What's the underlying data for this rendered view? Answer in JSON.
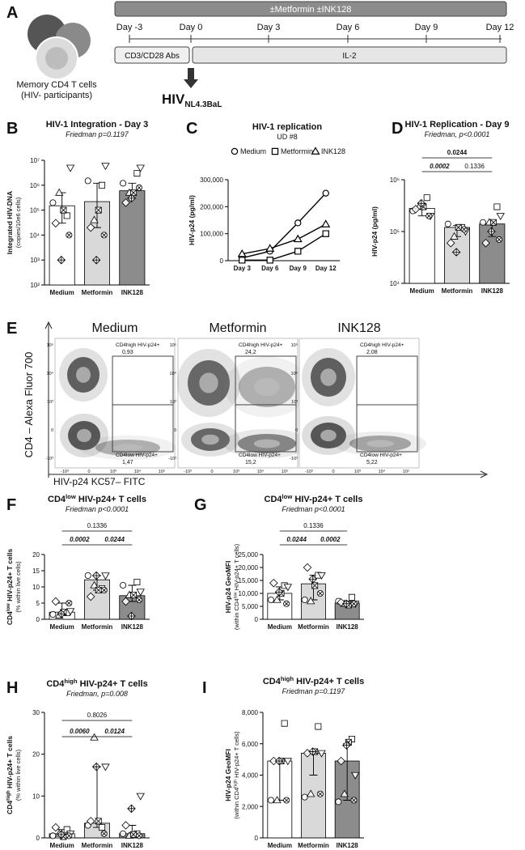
{
  "panel_a": {
    "letter": "A",
    "cells_label": [
      "Memory CD4 T cells",
      "(HIV- participants)"
    ],
    "treatment": "±Metformin ±INK128",
    "days": [
      "Day -3",
      "Day 0",
      "Day 3",
      "Day 6",
      "Day 9",
      "Day 12"
    ],
    "phases": [
      "CD3/CD28 Abs",
      "IL-2"
    ],
    "virus": "HIV",
    "virus_strain": "NL4.3BaL"
  },
  "panel_e": {
    "letter": "E",
    "y_label": "CD4 – Alexa Fluor 700",
    "x_label": "HIV-p24 KC57– FITC",
    "yticks": [
      "10⁵",
      "10⁴",
      "10³",
      "0",
      "-10³"
    ],
    "xticks": [
      "-10³",
      "0",
      "10³",
      "10⁴",
      "10⁵"
    ],
    "conditions": [
      {
        "title": "Medium",
        "gates": [
          {
            "label": "CD4high HIV-p24+",
            "percent": {
              "value": 0.93,
              "label": "0,93"
            }
          },
          {
            "label": "CD4low HIV-p24+",
            "percent": {
              "value": 1.47,
              "label": "1,47"
            }
          }
        ]
      },
      {
        "title": "Metformin",
        "gates": [
          {
            "label": "CD4high HIV-p24+",
            "percent": {
              "value": 24.2,
              "label": "24,2"
            }
          },
          {
            "label": "CD4low HIV-p24+",
            "percent": {
              "value": 15.2,
              "label": "15,2"
            }
          }
        ]
      },
      {
        "title": "INK128",
        "gates": [
          {
            "label": "CD4high HIV-p24+",
            "percent": {
              "value": 2.08,
              "label": "2,08"
            }
          },
          {
            "label": "CD4low HIV-p24+",
            "percent": {
              "value": 5.22,
              "label": "5,22"
            }
          }
        ]
      }
    ]
  },
  "markers": [
    "circle",
    "square",
    "triangle-up",
    "triangle-down",
    "diamond",
    "x-square",
    "x-circle",
    "plus-diamond"
  ],
  "chart_data": [
    {
      "panel": "B",
      "type": "bar",
      "title": "HIV-1 Integration - Day 3",
      "subtitle": "Friedman p=0.1197",
      "ylabel": [
        "Integrated HIV-DNA",
        "(copies/10e6 cells)"
      ],
      "categories": [
        "Medium",
        "Metformin",
        "INK128"
      ],
      "colors": [
        "#ffffff",
        "#d9d9d9",
        "#8c8c8c"
      ],
      "values": [
        150000,
        220000,
        600000
      ],
      "err_low": [
        30000,
        20000,
        300000
      ],
      "err_high": [
        500000,
        1200000,
        1200000
      ],
      "points": [
        [
          200000,
          60000,
          500000,
          5000000,
          30000,
          100000,
          10000,
          1000
        ],
        [
          1500000,
          1000000,
          40000,
          6000000,
          20000,
          100000,
          10000,
          1000
        ],
        [
          1200000,
          3000000,
          500000,
          5000000,
          200000,
          500000,
          800000,
          300000
        ]
      ],
      "log": true,
      "ylim": [
        100,
        10000000
      ],
      "yticks": [
        {
          "value": 100,
          "label": "10²"
        },
        {
          "value": 1000,
          "label": "10³"
        },
        {
          "value": 10000,
          "label": "10⁴"
        },
        {
          "value": 100000,
          "label": "10⁵"
        },
        {
          "value": 1000000,
          "label": "10⁶"
        },
        {
          "value": 10000000,
          "label": "10⁷"
        }
      ],
      "comparisons": []
    },
    {
      "panel": "C",
      "type": "line",
      "title": "HIV-1 replication",
      "subtitle": "UD #8",
      "ylabel": [
        "HIV-p24 (pg/ml)"
      ],
      "categories": [
        "Day 3",
        "Day 6",
        "Day 9",
        "Day 12"
      ],
      "series": [
        {
          "name": "Medium",
          "marker": "circle",
          "color": "#000000",
          "values": [
            10000,
            35000,
            140000,
            250000
          ]
        },
        {
          "name": "Metformin",
          "marker": "square",
          "color": "#000000",
          "values": [
            2000,
            2000,
            35000,
            100000
          ]
        },
        {
          "name": "INK128",
          "marker": "triangle-up",
          "color": "#000000",
          "values": [
            25000,
            45000,
            80000,
            135000
          ]
        }
      ],
      "log": false,
      "ylim": [
        0,
        300000
      ],
      "yticks": [
        0,
        {
          "value": 100000,
          "label": "100,000"
        },
        {
          "value": 200000,
          "label": "200,000"
        },
        {
          "value": 300000,
          "label": "300,000"
        }
      ]
    },
    {
      "panel": "D",
      "type": "bar",
      "title": "HIV-1 Replication - Day 9",
      "subtitle": "Friedman, p<0.0001",
      "ylabel": [
        "HIV-p24 (pg/ml)"
      ],
      "categories": [
        "Medium",
        "Metformin",
        "INK128"
      ],
      "colors": [
        "#ffffff",
        "#d9d9d9",
        "#8c8c8c"
      ],
      "values": [
        280000,
        120000,
        140000
      ],
      "err_low": [
        200000,
        80000,
        80000
      ],
      "err_high": [
        350000,
        130000,
        160000
      ],
      "points": [
        [
          250000,
          450000,
          300000,
          200000,
          270000,
          300000,
          200000,
          350000
        ],
        [
          140000,
          120000,
          80000,
          100000,
          60000,
          120000,
          110000,
          40000
        ],
        [
          150000,
          300000,
          150000,
          200000,
          60000,
          150000,
          70000,
          100000
        ]
      ],
      "log": true,
      "ylim": [
        10000,
        1000000
      ],
      "yticks": [
        {
          "value": 10000,
          "label": "10⁴"
        },
        {
          "value": 100000,
          "label": "10⁵"
        },
        {
          "value": 1000000,
          "label": "10⁶"
        }
      ],
      "comparisons": [
        {
          "groups": [
            "Medium",
            "INK128"
          ],
          "p": "0.0244",
          "emphasis": "bold"
        },
        {
          "groups": [
            "Medium",
            "Metformin"
          ],
          "p": "0.0002",
          "emphasis": "bold-italic"
        },
        {
          "groups": [
            "Metformin",
            "INK128"
          ],
          "p": "0.1336",
          "emphasis": "normal"
        }
      ]
    },
    {
      "panel": "F",
      "type": "bar",
      "title": [
        "CD4",
        "low",
        " HIV-p24+ T cells"
      ],
      "subtitle": "Friedman p<0.0001",
      "ylabel": [
        [
          "CD4",
          "low",
          " HIV-p24+ T cells"
        ],
        "(% within live cells)"
      ],
      "categories": [
        "Medium",
        "Metformin",
        "INK128"
      ],
      "colors": [
        "#ffffff",
        "#d9d9d9",
        "#8c8c8c"
      ],
      "values": [
        2.2,
        12.2,
        7.3
      ],
      "err_low": [
        1.5,
        9,
        5.5
      ],
      "err_high": [
        5,
        13.5,
        10.5
      ],
      "points": [
        [
          1.5,
          2,
          1.2,
          2.5,
          5.5,
          2.2,
          5,
          1.7
        ],
        [
          13.5,
          9.5,
          10.5,
          13.5,
          7,
          9,
          9,
          13.5
        ],
        [
          10.5,
          11.5,
          7.5,
          8.5,
          5.5,
          7.5,
          6,
          1
        ]
      ],
      "log": false,
      "ylim": [
        0,
        20
      ],
      "yticks": [
        0,
        5,
        10,
        15,
        20
      ],
      "comparisons": [
        {
          "groups": [
            "Medium",
            "INK128"
          ],
          "p": "0.1336",
          "emphasis": "normal"
        },
        {
          "groups": [
            "Medium",
            "Metformin"
          ],
          "p": "0.0002",
          "emphasis": "bold-italic"
        },
        {
          "groups": [
            "Metformin",
            "INK128"
          ],
          "p": "0.0244",
          "emphasis": "bold-italic"
        }
      ]
    },
    {
      "panel": "G",
      "type": "bar",
      "title": [
        "CD4",
        "low",
        " HIV-p24+ T cells"
      ],
      "subtitle": "Friedman p<0.0001",
      "ylabel": [
        "HIV-p24 GeoMFI",
        [
          "(within CD4",
          "low",
          " HIV-p24+ T cells)"
        ]
      ],
      "categories": [
        "Medium",
        "Metformin",
        "INK128"
      ],
      "colors": [
        "#ffffff",
        "#d9d9d9",
        "#8c8c8c"
      ],
      "values": [
        10000,
        13700,
        6300
      ],
      "err_low": [
        7500,
        7500,
        5500
      ],
      "err_high": [
        12500,
        17000,
        7000
      ],
      "points": [
        [
          7500,
          13000,
          7500,
          12500,
          14000,
          10000,
          6000,
          10500
        ],
        [
          7500,
          17000,
          7000,
          17000,
          20000,
          13000,
          10000,
          15500
        ],
        [
          7000,
          8500,
          6000,
          6000,
          6500,
          5500,
          6000,
          6000
        ]
      ],
      "log": false,
      "ylim": [
        0,
        25000
      ],
      "yticks": [
        0,
        {
          "value": 5000,
          "label": "5,000"
        },
        {
          "value": 10000,
          "label": "10,000"
        },
        {
          "value": 15000,
          "label": "15,000"
        },
        {
          "value": 20000,
          "label": "20,000"
        },
        {
          "value": 25000,
          "label": "25,000"
        }
      ],
      "comparisons": [
        {
          "groups": [
            "Medium",
            "INK128"
          ],
          "p": "0.1336",
          "emphasis": "normal"
        },
        {
          "groups": [
            "Medium",
            "Metformin"
          ],
          "p": "0.0244",
          "emphasis": "bold-italic"
        },
        {
          "groups": [
            "Metformin",
            "INK128"
          ],
          "p": "0.0002",
          "emphasis": "bold-italic"
        }
      ]
    },
    {
      "panel": "H",
      "type": "bar",
      "title": [
        "CD4",
        "high",
        " HIV-p24+ T cells"
      ],
      "subtitle": "Friedman, p=0.008",
      "ylabel": [
        [
          "CD4",
          "high",
          " HIV-p24+ T cells"
        ],
        "(% within live cells)"
      ],
      "categories": [
        "Medium",
        "Metformin",
        "INK128"
      ],
      "colors": [
        "#ffffff",
        "#d9d9d9",
        "#8c8c8c"
      ],
      "values": [
        1,
        3.5,
        1
      ],
      "err_low": [
        0.5,
        2.5,
        0.5
      ],
      "err_high": [
        2,
        17,
        3
      ],
      "points": [
        [
          0.5,
          2,
          1,
          1,
          2.5,
          0.3,
          0.5,
          0.8
        ],
        [
          3,
          2.5,
          24,
          17,
          4,
          4,
          1,
          17
        ],
        [
          1,
          1,
          0.5,
          10,
          3,
          0.8,
          0.5,
          7
        ]
      ],
      "log": false,
      "ylim": [
        0,
        30
      ],
      "yticks": [
        0,
        10,
        20,
        30
      ],
      "comparisons": [
        {
          "groups": [
            "Medium",
            "INK128"
          ],
          "p": "0.8026",
          "emphasis": "normal"
        },
        {
          "groups": [
            "Medium",
            "Metformin"
          ],
          "p": "0.0060",
          "emphasis": "bold-italic"
        },
        {
          "groups": [
            "Metformin",
            "INK128"
          ],
          "p": "0.0124",
          "emphasis": "bold-italic"
        }
      ]
    },
    {
      "panel": "I",
      "type": "bar",
      "title": [
        "CD4",
        "high",
        " HIV-p24+ T cells"
      ],
      "subtitle": "Friedman p=0.1197",
      "ylabel": [
        "HIV-p24 GeoMFI",
        [
          "(within CD4",
          "high",
          " HIV-p24+ T cells)"
        ]
      ],
      "categories": [
        "Medium",
        "Metformin",
        "INK128"
      ],
      "colors": [
        "#ffffff",
        "#d9d9d9",
        "#8c8c8c"
      ],
      "values": [
        4900,
        5400,
        4900
      ],
      "err_low": [
        2400,
        4000,
        2400
      ],
      "err_high": [
        4900,
        5500,
        6000
      ],
      "points": [
        [
          2400,
          7300,
          2400,
          4900,
          4900,
          4900,
          2400,
          4900
        ],
        [
          2600,
          7100,
          2800,
          5400,
          5400,
          5500,
          2800,
          5500
        ],
        [
          2300,
          6300,
          2800,
          4000,
          4900,
          6100,
          2400,
          5900
        ]
      ],
      "log": false,
      "ylim": [
        0,
        8000
      ],
      "yticks": [
        0,
        {
          "value": 2000,
          "label": "2,000"
        },
        {
          "value": 4000,
          "label": "4,000"
        },
        {
          "value": 6000,
          "label": "6,000"
        },
        {
          "value": 8000,
          "label": "8,000"
        }
      ],
      "comparisons": []
    }
  ]
}
